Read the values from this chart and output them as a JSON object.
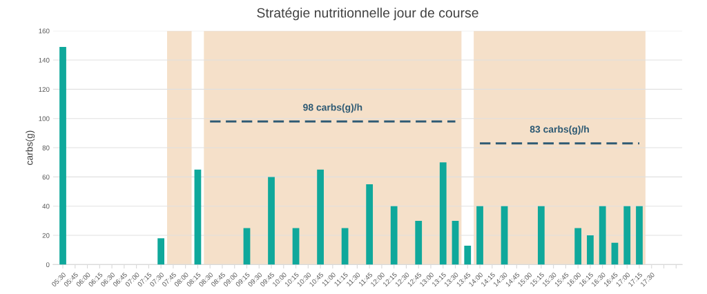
{
  "chart_data": {
    "type": "bar",
    "title": "Stratégie nutritionnelle jour de course",
    "ylabel": "carbs(g)",
    "categories": [
      "05:30",
      "05:45",
      "06:00",
      "06:15",
      "06:30",
      "06:45",
      "07:00",
      "07:15",
      "07:30",
      "07:45",
      "08:00",
      "08:15",
      "08:30",
      "08:45",
      "09:00",
      "09:15",
      "09:30",
      "09:45",
      "10:00",
      "10:15",
      "10:30",
      "10:45",
      "11:00",
      "11:15",
      "11:30",
      "11:45",
      "12:00",
      "12:15",
      "12:30",
      "12:45",
      "13:00",
      "13:15",
      "13:30",
      "13:45",
      "14:00",
      "14:15",
      "14:30",
      "14:45",
      "15:00",
      "15:15",
      "15:30",
      "15:45",
      "16:00",
      "16:15",
      "16:30",
      "16:45",
      "17:00",
      "17:15",
      "17:30",
      null,
      null
    ],
    "series": [
      {
        "color": "#0fa89b",
        "values": [
          149,
          null,
          null,
          null,
          null,
          null,
          null,
          null,
          18,
          null,
          null,
          65,
          null,
          null,
          null,
          25,
          null,
          60,
          null,
          25,
          null,
          65,
          null,
          25,
          null,
          55,
          null,
          40,
          null,
          30,
          null,
          70,
          30,
          13,
          40,
          null,
          40,
          null,
          null,
          40,
          null,
          null,
          25,
          20,
          40,
          15,
          40,
          40,
          null,
          null,
          null
        ]
      },
      {
        "type": "line",
        "color": "#2e5a74",
        "line_style": "dashed",
        "marker": "none",
        "values": [
          null,
          null,
          null,
          null,
          null,
          null,
          null,
          null,
          null,
          null,
          null,
          null,
          98,
          98,
          98,
          98,
          98,
          98,
          98,
          98,
          98,
          98,
          98,
          98,
          98,
          98,
          98,
          98,
          98,
          98,
          98,
          98,
          98,
          null,
          null,
          null,
          null,
          null,
          null,
          null,
          null,
          null,
          null,
          null,
          null,
          null,
          null,
          null,
          null,
          null,
          null
        ]
      },
      {
        "type": "line",
        "color": "#2e5a74",
        "line_style": "dashed",
        "marker": "none",
        "values": [
          null,
          null,
          null,
          null,
          null,
          null,
          null,
          null,
          null,
          null,
          null,
          null,
          null,
          null,
          null,
          null,
          null,
          null,
          null,
          null,
          null,
          null,
          null,
          null,
          null,
          null,
          null,
          null,
          null,
          null,
          null,
          null,
          null,
          null,
          83,
          83,
          83,
          83,
          83,
          83,
          83,
          83,
          83,
          83,
          83,
          83,
          83,
          83,
          null,
          null,
          null
        ]
      }
    ],
    "bands": [
      {
        "axis": "x",
        "from": "07:45",
        "to": "08:00",
        "color": "#f5e0c9"
      },
      {
        "axis": "x",
        "from": "08:30",
        "to": "13:30",
        "color": "#f5e0c9"
      },
      {
        "axis": "x",
        "from": "14:00",
        "to": "17:15",
        "color": "#f5e0c9"
      }
    ],
    "annotations": [
      "98 carbs(g)/h",
      "83 carbs(g)/h"
    ],
    "ylim": [
      0,
      160
    ],
    "yticks": [
      0,
      20,
      40,
      60,
      80,
      100,
      120,
      140,
      160
    ],
    "grid": "y",
    "legend": false
  }
}
